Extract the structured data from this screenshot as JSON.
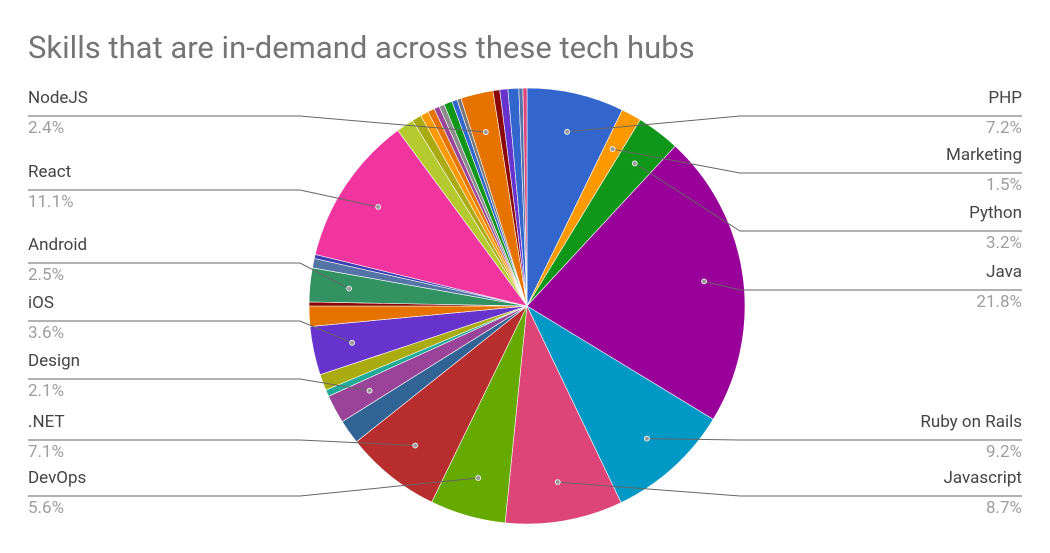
{
  "chart_data": {
    "type": "pie",
    "title": "Skills that are in-demand across these tech hubs",
    "categories": [
      "PHP",
      "Marketing",
      "Python",
      "Java",
      "Ruby on Rails",
      "Javascript",
      "DevOps",
      ".NET",
      null,
      "Design",
      null,
      null,
      "iOS",
      null,
      null,
      "Android",
      null,
      null,
      "React",
      null,
      null,
      null,
      null,
      null,
      null,
      null,
      null,
      null,
      "NodeJS",
      null,
      null,
      null,
      null,
      null
    ],
    "values": [
      7.2,
      1.5,
      3.2,
      21.8,
      9.2,
      8.7,
      5.6,
      7.1,
      1.8,
      2.1,
      0.5,
      1.2,
      3.6,
      1.5,
      0.3,
      2.5,
      0.7,
      0.3,
      11.1,
      1.3,
      0.7,
      0.6,
      0.5,
      0.4,
      0.4,
      0.6,
      0.4,
      0.3,
      2.4,
      0.5,
      0.6,
      0.8,
      0.3,
      0.3
    ],
    "value_labels": [
      "7.2%",
      "1.5%",
      "3.2%",
      "21.8%",
      "9.2%",
      "8.7%",
      "5.6%",
      "7.1%",
      null,
      "2.1%",
      null,
      null,
      "3.6%",
      null,
      null,
      "2.5%",
      null,
      null,
      "11.1%",
      null,
      null,
      null,
      null,
      null,
      null,
      null,
      null,
      null,
      "2.4%",
      null,
      null,
      null,
      null,
      null
    ],
    "colors": [
      "#3366cc",
      "#ff9900",
      "#109618",
      "#990099",
      "#0099c6",
      "#dd4477",
      "#66aa00",
      "#b82e2e",
      "#316395",
      "#994499",
      "#22aa99",
      "#aaaa11",
      "#6633cc",
      "#e67300",
      "#8b0707",
      "#329262",
      "#5574a6",
      "#3b3eac",
      "#f0359f",
      "#b5ca2e",
      "#aaaa11",
      "#ff9900",
      "#e67300",
      "#994499",
      "#8c8c8c",
      "#109618",
      "#3366cc",
      "#777777",
      "#e67300",
      "#8b0707",
      "#6633cc",
      "#3366cc",
      "#5574a6",
      "#dd4477"
    ]
  }
}
